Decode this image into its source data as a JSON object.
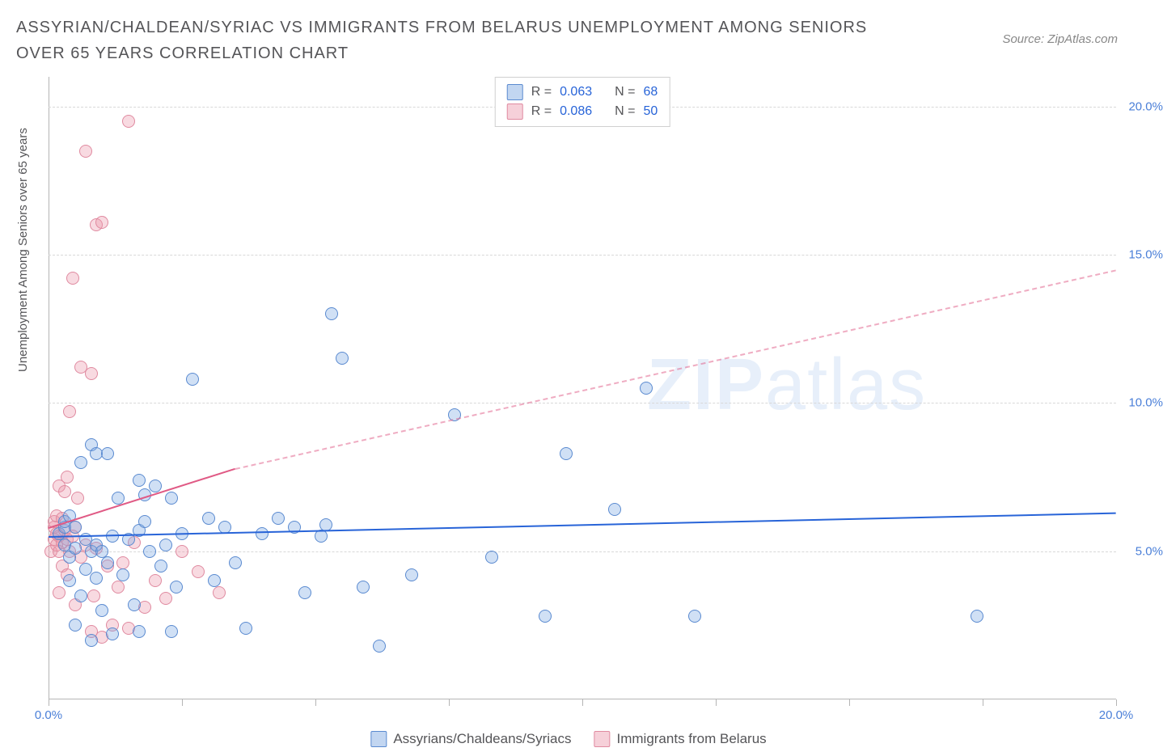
{
  "title": "ASSYRIAN/CHALDEAN/SYRIAC VS IMMIGRANTS FROM BELARUS UNEMPLOYMENT AMONG SENIORS OVER 65 YEARS CORRELATION CHART",
  "source": "Source: ZipAtlas.com",
  "y_axis_label": "Unemployment Among Seniors over 65 years",
  "watermark": {
    "bold": "ZIP",
    "rest": "atlas"
  },
  "chart": {
    "type": "scatter",
    "xlim": [
      0,
      20
    ],
    "ylim": [
      0,
      21
    ],
    "x_ticks": [
      0,
      2.5,
      5,
      7.5,
      10,
      12.5,
      15,
      17.5,
      20
    ],
    "x_tick_labels": {
      "0": "0.0%",
      "20": "20.0%"
    },
    "y_ticks": [
      5,
      10,
      15,
      20
    ],
    "y_labels": [
      "5.0%",
      "10.0%",
      "15.0%",
      "20.0%"
    ],
    "grid_color": "#d8d8d8",
    "background": "#ffffff",
    "marker_size": 16,
    "series": {
      "blue": {
        "label": "Assyrians/Chaldeans/Syriacs",
        "fill": "rgba(120,165,225,0.35)",
        "stroke": "#5a8ad0",
        "R": "0.063",
        "N": "68",
        "trend": {
          "x0": 0,
          "y0": 5.5,
          "x1": 20,
          "y1": 6.3,
          "color": "#2864d8"
        },
        "points": [
          [
            0.2,
            5.6
          ],
          [
            0.3,
            5.2
          ],
          [
            0.3,
            5.8
          ],
          [
            0.3,
            6.0
          ],
          [
            0.4,
            4.0
          ],
          [
            0.4,
            4.8
          ],
          [
            0.5,
            2.5
          ],
          [
            0.5,
            5.1
          ],
          [
            0.6,
            3.5
          ],
          [
            0.6,
            8.0
          ],
          [
            0.7,
            4.4
          ],
          [
            0.7,
            5.4
          ],
          [
            0.8,
            2.0
          ],
          [
            0.8,
            5.0
          ],
          [
            0.8,
            8.6
          ],
          [
            0.9,
            4.1
          ],
          [
            0.9,
            5.2
          ],
          [
            0.9,
            8.3
          ],
          [
            1.0,
            3.0
          ],
          [
            1.0,
            5.0
          ],
          [
            1.1,
            8.3
          ],
          [
            1.1,
            4.6
          ],
          [
            1.2,
            2.2
          ],
          [
            1.2,
            5.5
          ],
          [
            1.3,
            6.8
          ],
          [
            1.4,
            4.2
          ],
          [
            1.5,
            5.4
          ],
          [
            1.6,
            3.2
          ],
          [
            1.7,
            5.7
          ],
          [
            1.7,
            7.4
          ],
          [
            1.7,
            2.3
          ],
          [
            1.8,
            6.0
          ],
          [
            1.8,
            6.9
          ],
          [
            1.9,
            5.0
          ],
          [
            2.0,
            7.2
          ],
          [
            2.1,
            4.5
          ],
          [
            2.2,
            5.2
          ],
          [
            2.3,
            6.8
          ],
          [
            2.3,
            2.3
          ],
          [
            2.4,
            3.8
          ],
          [
            2.5,
            5.6
          ],
          [
            2.7,
            10.8
          ],
          [
            3.0,
            6.1
          ],
          [
            3.1,
            4.0
          ],
          [
            3.3,
            5.8
          ],
          [
            3.5,
            4.6
          ],
          [
            3.7,
            2.4
          ],
          [
            4.0,
            5.6
          ],
          [
            4.3,
            6.1
          ],
          [
            4.6,
            5.8
          ],
          [
            4.8,
            3.6
          ],
          [
            5.1,
            5.5
          ],
          [
            5.2,
            5.9
          ],
          [
            5.3,
            13.0
          ],
          [
            5.5,
            11.5
          ],
          [
            5.9,
            3.8
          ],
          [
            6.2,
            1.8
          ],
          [
            6.8,
            4.2
          ],
          [
            7.6,
            9.6
          ],
          [
            8.3,
            4.8
          ],
          [
            9.3,
            2.8
          ],
          [
            9.7,
            8.3
          ],
          [
            10.6,
            6.4
          ],
          [
            11.2,
            10.5
          ],
          [
            12.1,
            2.8
          ],
          [
            17.4,
            2.8
          ],
          [
            0.4,
            6.2
          ],
          [
            0.5,
            5.8
          ]
        ]
      },
      "pink": {
        "label": "Immigrants from Belarus",
        "fill": "rgba(235,150,170,0.35)",
        "stroke": "#e08aa0",
        "R": "0.086",
        "N": "50",
        "trend_solid": {
          "x0": 0,
          "y0": 5.8,
          "x1": 3.5,
          "y1": 7.8,
          "color": "#e05a85"
        },
        "trend_dash": {
          "x0": 3.5,
          "y0": 7.8,
          "x1": 20,
          "y1": 14.5,
          "color": "rgba(224,90,133,0.5)"
        },
        "points": [
          [
            0.05,
            5.0
          ],
          [
            0.1,
            5.4
          ],
          [
            0.1,
            5.8
          ],
          [
            0.1,
            6.0
          ],
          [
            0.15,
            5.2
          ],
          [
            0.15,
            5.6
          ],
          [
            0.15,
            6.2
          ],
          [
            0.2,
            3.6
          ],
          [
            0.2,
            5.0
          ],
          [
            0.2,
            5.5
          ],
          [
            0.2,
            7.2
          ],
          [
            0.25,
            4.5
          ],
          [
            0.25,
            5.3
          ],
          [
            0.25,
            6.1
          ],
          [
            0.3,
            5.7
          ],
          [
            0.3,
            7.0
          ],
          [
            0.35,
            4.2
          ],
          [
            0.35,
            5.4
          ],
          [
            0.35,
            7.5
          ],
          [
            0.4,
            5.0
          ],
          [
            0.4,
            9.7
          ],
          [
            0.45,
            5.5
          ],
          [
            0.45,
            14.2
          ],
          [
            0.5,
            3.2
          ],
          [
            0.5,
            5.8
          ],
          [
            0.55,
            6.8
          ],
          [
            0.6,
            4.8
          ],
          [
            0.6,
            11.2
          ],
          [
            0.7,
            5.2
          ],
          [
            0.7,
            18.5
          ],
          [
            0.8,
            2.3
          ],
          [
            0.8,
            11.0
          ],
          [
            0.85,
            3.5
          ],
          [
            0.9,
            5.1
          ],
          [
            0.9,
            16.0
          ],
          [
            1.0,
            2.1
          ],
          [
            1.0,
            16.1
          ],
          [
            1.1,
            4.5
          ],
          [
            1.2,
            2.5
          ],
          [
            1.3,
            3.8
          ],
          [
            1.4,
            4.6
          ],
          [
            1.5,
            2.4
          ],
          [
            1.5,
            19.5
          ],
          [
            1.6,
            5.3
          ],
          [
            1.8,
            3.1
          ],
          [
            2.0,
            4.0
          ],
          [
            2.2,
            3.4
          ],
          [
            2.5,
            5.0
          ],
          [
            2.8,
            4.3
          ],
          [
            3.2,
            3.6
          ]
        ]
      }
    }
  },
  "stats_labels": {
    "R": "R =",
    "N": "N ="
  },
  "legend_items": [
    {
      "swatch": "blue",
      "label_path": "chart.series.blue.label"
    },
    {
      "swatch": "pink",
      "label_path": "chart.series.pink.label"
    }
  ]
}
